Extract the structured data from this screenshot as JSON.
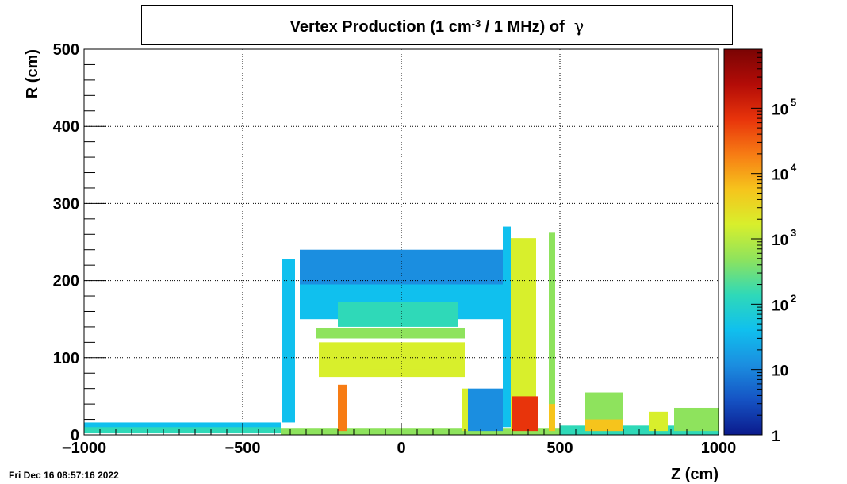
{
  "title": {
    "prefix": "Vertex Production (1 cm",
    "exponent": "-3",
    "suffix": " / 1 MHz) of",
    "particle": "γ"
  },
  "footer": {
    "timestamp": "Fri Dec 16 08:57:16 2022"
  },
  "chart_data": {
    "type": "heatmap",
    "xlabel": "Z (cm)",
    "ylabel": "R (cm)",
    "xlim": [
      -1000,
      1000
    ],
    "ylim": [
      0,
      500
    ],
    "x_ticks": [
      {
        "value": -1000,
        "label": "−1000"
      },
      {
        "value": -500,
        "label": "−500"
      },
      {
        "value": 0,
        "label": "0"
      },
      {
        "value": 500,
        "label": "500"
      },
      {
        "value": 1000,
        "label": "1000"
      }
    ],
    "y_ticks": [
      {
        "value": 0,
        "label": "0"
      },
      {
        "value": 100,
        "label": "100"
      },
      {
        "value": 200,
        "label": "200"
      },
      {
        "value": 300,
        "label": "300"
      },
      {
        "value": 400,
        "label": "400"
      },
      {
        "value": 500,
        "label": "500"
      }
    ],
    "grid": true,
    "colorbar": {
      "scale": "log",
      "range": [
        1,
        800000
      ],
      "ticks": [
        {
          "value": 1,
          "base": "1",
          "exp": ""
        },
        {
          "value": 10,
          "base": "10",
          "exp": ""
        },
        {
          "value": 100,
          "base": "10",
          "exp": "2"
        },
        {
          "value": 1000,
          "base": "10",
          "exp": "3"
        },
        {
          "value": 10000,
          "base": "10",
          "exp": "4"
        },
        {
          "value": 100000,
          "base": "10",
          "exp": "5"
        }
      ],
      "palette": [
        "#0b1a8c",
        "#1553c4",
        "#1b8ee0",
        "#10c0ee",
        "#2fd9b8",
        "#8ee35d",
        "#d8ef2c",
        "#f6c41c",
        "#f77c14",
        "#e8340b",
        "#b30c07",
        "#7a0404"
      ]
    },
    "regions": [
      {
        "name": "beampipe-left-band",
        "z": [
          -1000,
          -380
        ],
        "r": [
          2,
          12
        ],
        "value": 100
      },
      {
        "name": "beampipe-left-upper",
        "z": [
          -1000,
          -380
        ],
        "r": [
          10,
          16
        ],
        "value": 60
      },
      {
        "name": "beampipe-center",
        "z": [
          -380,
          500
        ],
        "r": [
          0,
          8
        ],
        "value": 600
      },
      {
        "name": "beampipe-right",
        "z": [
          500,
          1000
        ],
        "r": [
          0,
          12
        ],
        "value": 80
      },
      {
        "name": "left-endcap-wall",
        "z": [
          -375,
          -335
        ],
        "r": [
          16,
          228
        ],
        "value": 40
      },
      {
        "name": "outer-shell-top",
        "z": [
          -320,
          320
        ],
        "r": [
          185,
          240
        ],
        "value": 15
      },
      {
        "name": "outer-shell-fill",
        "z": [
          -320,
          320
        ],
        "r": [
          150,
          195
        ],
        "value": 60
      },
      {
        "name": "upper-ring",
        "z": [
          -200,
          180
        ],
        "r": [
          140,
          172
        ],
        "value": 220
      },
      {
        "name": "middle-bar",
        "z": [
          -270,
          200
        ],
        "r": [
          125,
          138
        ],
        "value": 260
      },
      {
        "name": "inner-dome",
        "z": [
          -260,
          200
        ],
        "r": [
          75,
          120
        ],
        "value": 1800
      },
      {
        "name": "dome-core",
        "z": [
          -100,
          80
        ],
        "r": [
          85,
          110
        ],
        "value": 2500
      },
      {
        "name": "inner-left-block",
        "z": [
          -200,
          -170
        ],
        "r": [
          5,
          65
        ],
        "value": 20000
      },
      {
        "name": "inner-right-block",
        "z": [
          190,
          215
        ],
        "r": [
          5,
          60
        ],
        "value": 1200
      },
      {
        "name": "right-calo-wall",
        "z": [
          320,
          345
        ],
        "r": [
          10,
          270
        ],
        "value": 60
      },
      {
        "name": "right-calo-main",
        "z": [
          345,
          425
        ],
        "r": [
          5,
          255
        ],
        "value": 2500
      },
      {
        "name": "right-calo-hot",
        "z": [
          350,
          430
        ],
        "r": [
          5,
          50
        ],
        "value": 60000
      },
      {
        "name": "right-calo-edge",
        "z": [
          465,
          485
        ],
        "r": [
          5,
          262
        ],
        "value": 300
      },
      {
        "name": "right-calo-edge-hot",
        "z": [
          465,
          485
        ],
        "r": [
          5,
          40
        ],
        "value": 5000
      },
      {
        "name": "detector-block-a",
        "z": [
          580,
          700
        ],
        "r": [
          5,
          55
        ],
        "value": 700
      },
      {
        "name": "detector-block-a-hot",
        "z": [
          580,
          700
        ],
        "r": [
          5,
          20
        ],
        "value": 8000
      },
      {
        "name": "detector-block-b",
        "z": [
          780,
          840
        ],
        "r": [
          5,
          30
        ],
        "value": 900
      },
      {
        "name": "detector-block-c",
        "z": [
          860,
          1000
        ],
        "r": [
          5,
          35
        ],
        "value": 300
      },
      {
        "name": "support-structure",
        "z": [
          210,
          320
        ],
        "r": [
          5,
          60
        ],
        "value": 20
      }
    ]
  }
}
